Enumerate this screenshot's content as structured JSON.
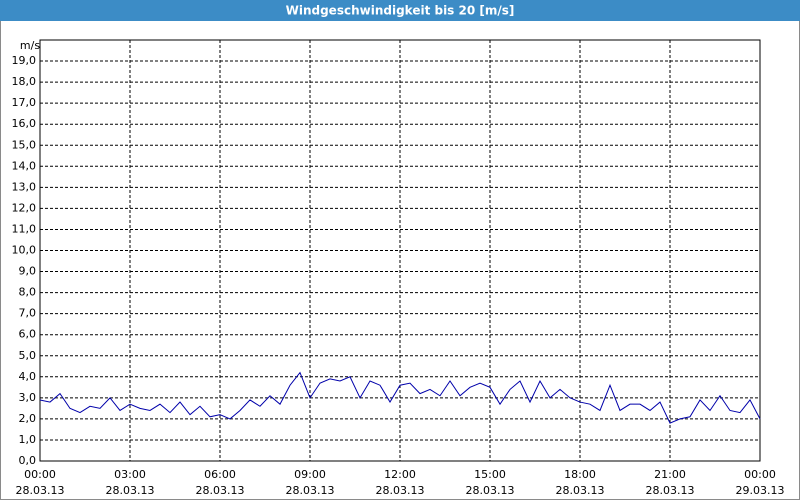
{
  "chart_data": {
    "type": "line",
    "title": "Windgeschwindigkeit bis 20 [m/s]",
    "y_axis_label": "m/s",
    "grid": true,
    "xlim": [
      "28.03.13 00:00",
      "29.03.13 00:00"
    ],
    "xticks": [
      {
        "value": "28.03.13 00:00",
        "label": [
          "00:00",
          "28.03.13"
        ]
      },
      {
        "value": "28.03.13 03:00",
        "label": [
          "03:00",
          "28.03.13"
        ]
      },
      {
        "value": "28.03.13 06:00",
        "label": [
          "06:00",
          "28.03.13"
        ]
      },
      {
        "value": "28.03.13 09:00",
        "label": [
          "09:00",
          "28.03.13"
        ]
      },
      {
        "value": "28.03.13 12:00",
        "label": [
          "12:00",
          "28.03.13"
        ]
      },
      {
        "value": "28.03.13 15:00",
        "label": [
          "15:00",
          "28.03.13"
        ]
      },
      {
        "value": "28.03.13 18:00",
        "label": [
          "18:00",
          "28.03.13"
        ]
      },
      {
        "value": "28.03.13 21:00",
        "label": [
          "21:00",
          "28.03.13"
        ]
      },
      {
        "value": "29.03.13 00:00",
        "label": [
          "00:00",
          "29.03.13"
        ]
      }
    ],
    "ylim": [
      0,
      20
    ],
    "yticks": [
      {
        "value": 0,
        "label": "0,0"
      },
      {
        "value": 1,
        "label": "1,0"
      },
      {
        "value": 2,
        "label": "2,0"
      },
      {
        "value": 3,
        "label": "3,0"
      },
      {
        "value": 4,
        "label": "4,0"
      },
      {
        "value": 5,
        "label": "5,0"
      },
      {
        "value": 6,
        "label": "6,0"
      },
      {
        "value": 7,
        "label": "7,0"
      },
      {
        "value": 8,
        "label": "8,0"
      },
      {
        "value": 9,
        "label": "9,0"
      },
      {
        "value": 10,
        "label": "10,0"
      },
      {
        "value": 11,
        "label": "11,0"
      },
      {
        "value": 12,
        "label": "12,0"
      },
      {
        "value": 13,
        "label": "13,0"
      },
      {
        "value": 14,
        "label": "14,0"
      },
      {
        "value": 15,
        "label": "15,0"
      },
      {
        "value": 16,
        "label": "16,0"
      },
      {
        "value": 17,
        "label": "17,0"
      },
      {
        "value": 18,
        "label": "18,0"
      },
      {
        "value": 19,
        "label": "19,0"
      }
    ],
    "x": [
      "28.03.13 00:00",
      "28.03.13 00:20",
      "28.03.13 00:40",
      "28.03.13 01:00",
      "28.03.13 01:20",
      "28.03.13 01:40",
      "28.03.13 02:00",
      "28.03.13 02:20",
      "28.03.13 02:40",
      "28.03.13 03:00",
      "28.03.13 03:20",
      "28.03.13 03:40",
      "28.03.13 04:00",
      "28.03.13 04:20",
      "28.03.13 04:40",
      "28.03.13 05:00",
      "28.03.13 05:20",
      "28.03.13 05:40",
      "28.03.13 06:00",
      "28.03.13 06:20",
      "28.03.13 06:40",
      "28.03.13 07:00",
      "28.03.13 07:20",
      "28.03.13 07:40",
      "28.03.13 08:00",
      "28.03.13 08:20",
      "28.03.13 08:40",
      "28.03.13 09:00",
      "28.03.13 09:20",
      "28.03.13 09:40",
      "28.03.13 10:00",
      "28.03.13 10:20",
      "28.03.13 10:40",
      "28.03.13 11:00",
      "28.03.13 11:20",
      "28.03.13 11:40",
      "28.03.13 12:00",
      "28.03.13 12:20",
      "28.03.13 12:40",
      "28.03.13 13:00",
      "28.03.13 13:20",
      "28.03.13 13:40",
      "28.03.13 14:00",
      "28.03.13 14:20",
      "28.03.13 14:40",
      "28.03.13 15:00",
      "28.03.13 15:20",
      "28.03.13 15:40",
      "28.03.13 16:00",
      "28.03.13 16:20",
      "28.03.13 16:40",
      "28.03.13 17:00",
      "28.03.13 17:20",
      "28.03.13 17:40",
      "28.03.13 18:00",
      "28.03.13 18:20",
      "28.03.13 18:40",
      "28.03.13 19:00",
      "28.03.13 19:20",
      "28.03.13 19:40",
      "28.03.13 20:00",
      "28.03.13 20:20",
      "28.03.13 20:40",
      "28.03.13 21:00",
      "28.03.13 21:20",
      "28.03.13 21:40",
      "28.03.13 22:00",
      "28.03.13 22:20",
      "28.03.13 22:40",
      "28.03.13 23:00",
      "28.03.13 23:20",
      "28.03.13 23:40",
      "29.03.13 00:00"
    ],
    "series": [
      {
        "color": "#0000aa",
        "values": [
          2.9,
          2.8,
          3.2,
          2.5,
          2.3,
          2.6,
          2.5,
          3.0,
          2.4,
          2.7,
          2.5,
          2.4,
          2.7,
          2.3,
          2.8,
          2.2,
          2.6,
          2.1,
          2.2,
          2.0,
          2.4,
          2.9,
          2.6,
          3.1,
          2.7,
          3.6,
          4.2,
          3.0,
          3.7,
          3.9,
          3.8,
          4.0,
          3.0,
          3.8,
          3.6,
          2.8,
          3.6,
          3.7,
          3.2,
          3.4,
          3.1,
          3.8,
          3.1,
          3.5,
          3.7,
          3.5,
          2.7,
          3.4,
          3.8,
          2.8,
          3.8,
          3.0,
          3.4,
          3.0,
          2.8,
          2.7,
          2.4,
          3.6,
          2.4,
          2.7,
          2.7,
          2.4,
          2.8,
          1.8,
          2.0,
          2.1,
          2.9,
          2.4,
          3.1,
          2.4,
          2.3,
          2.9,
          2.0
        ]
      }
    ]
  }
}
